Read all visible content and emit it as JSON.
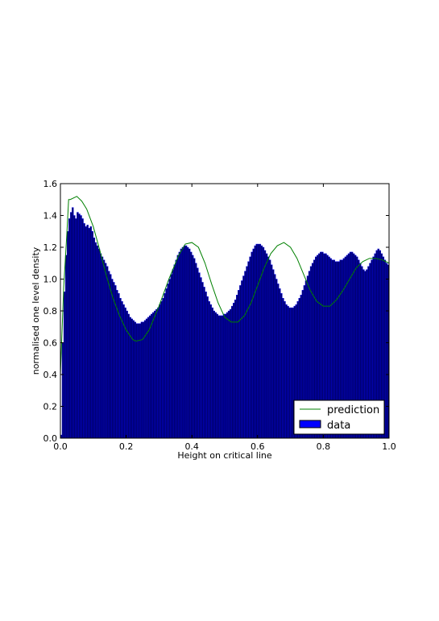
{
  "chart_data": {
    "type": "bar",
    "title": "",
    "xlabel": "Height on critical line",
    "ylabel": "normalised one level density",
    "xlim": [
      0.0,
      1.0
    ],
    "ylim": [
      0.0,
      1.6
    ],
    "x_ticks": [
      "0.0",
      "0.2",
      "0.4",
      "0.6",
      "0.8",
      "1.0"
    ],
    "y_ticks": [
      "0.0",
      "0.2",
      "0.4",
      "0.6",
      "0.8",
      "1.0",
      "1.2",
      "1.4",
      "1.6"
    ],
    "grid": false,
    "legend": {
      "placement": "lower-right",
      "entries": [
        "prediction",
        "data"
      ]
    },
    "colors": {
      "bar_fill": "#000066",
      "bar_edge": "#0000ff",
      "legend_patch": "#0000ff",
      "prediction_line": "#008000"
    },
    "series": [
      {
        "name": "data",
        "type": "bar",
        "bin_width": 0.005,
        "x_start": 0.0,
        "values": [
          0.02,
          0.6,
          0.92,
          1.15,
          1.3,
          1.38,
          1.42,
          1.45,
          1.4,
          1.38,
          1.42,
          1.41,
          1.4,
          1.38,
          1.35,
          1.33,
          1.34,
          1.32,
          1.33,
          1.3,
          1.26,
          1.23,
          1.21,
          1.19,
          1.16,
          1.14,
          1.12,
          1.1,
          1.08,
          1.05,
          1.03,
          1.0,
          0.98,
          0.96,
          0.93,
          0.91,
          0.88,
          0.86,
          0.84,
          0.82,
          0.8,
          0.78,
          0.76,
          0.75,
          0.74,
          0.73,
          0.72,
          0.72,
          0.72,
          0.73,
          0.73,
          0.74,
          0.75,
          0.76,
          0.77,
          0.78,
          0.79,
          0.8,
          0.81,
          0.82,
          0.84,
          0.86,
          0.88,
          0.91,
          0.94,
          0.97,
          1.0,
          1.03,
          1.06,
          1.09,
          1.12,
          1.15,
          1.17,
          1.19,
          1.2,
          1.21,
          1.21,
          1.2,
          1.19,
          1.17,
          1.15,
          1.13,
          1.1,
          1.07,
          1.04,
          1.01,
          0.98,
          0.95,
          0.92,
          0.89,
          0.86,
          0.84,
          0.82,
          0.8,
          0.79,
          0.78,
          0.77,
          0.77,
          0.77,
          0.78,
          0.78,
          0.79,
          0.8,
          0.81,
          0.83,
          0.85,
          0.87,
          0.9,
          0.93,
          0.96,
          0.99,
          1.02,
          1.05,
          1.08,
          1.11,
          1.14,
          1.17,
          1.19,
          1.21,
          1.22,
          1.22,
          1.22,
          1.21,
          1.2,
          1.18,
          1.16,
          1.14,
          1.12,
          1.09,
          1.06,
          1.03,
          1.0,
          0.97,
          0.94,
          0.91,
          0.88,
          0.86,
          0.84,
          0.83,
          0.82,
          0.82,
          0.82,
          0.83,
          0.84,
          0.86,
          0.88,
          0.9,
          0.93,
          0.96,
          0.99,
          1.02,
          1.05,
          1.08,
          1.1,
          1.12,
          1.14,
          1.15,
          1.16,
          1.17,
          1.17,
          1.16,
          1.16,
          1.15,
          1.14,
          1.13,
          1.12,
          1.12,
          1.11,
          1.11,
          1.11,
          1.12,
          1.12,
          1.13,
          1.14,
          1.15,
          1.16,
          1.17,
          1.17,
          1.16,
          1.15,
          1.14,
          1.12,
          1.1,
          1.08,
          1.06,
          1.05,
          1.06,
          1.08,
          1.1,
          1.12,
          1.14,
          1.16,
          1.18,
          1.19,
          1.18,
          1.16,
          1.14,
          1.12,
          1.1,
          1.09
        ]
      },
      {
        "name": "prediction",
        "type": "line",
        "x": [
          0.0,
          0.01,
          0.02,
          0.025,
          0.03,
          0.05,
          0.065,
          0.08,
          0.1,
          0.12,
          0.14,
          0.16,
          0.18,
          0.2,
          0.22,
          0.23,
          0.25,
          0.27,
          0.3,
          0.33,
          0.36,
          0.38,
          0.4,
          0.42,
          0.44,
          0.46,
          0.48,
          0.5,
          0.52,
          0.54,
          0.56,
          0.58,
          0.6,
          0.62,
          0.64,
          0.66,
          0.68,
          0.7,
          0.72,
          0.74,
          0.76,
          0.78,
          0.8,
          0.82,
          0.84,
          0.86,
          0.88,
          0.9,
          0.92,
          0.94,
          0.96,
          0.98,
          1.0
        ],
        "y": [
          0.4,
          0.95,
          1.3,
          1.5,
          1.5,
          1.52,
          1.49,
          1.44,
          1.33,
          1.18,
          1.02,
          0.88,
          0.77,
          0.68,
          0.62,
          0.61,
          0.62,
          0.68,
          0.83,
          1.0,
          1.15,
          1.22,
          1.23,
          1.2,
          1.1,
          0.97,
          0.85,
          0.76,
          0.73,
          0.73,
          0.77,
          0.85,
          0.96,
          1.07,
          1.16,
          1.21,
          1.23,
          1.2,
          1.13,
          1.03,
          0.93,
          0.86,
          0.83,
          0.83,
          0.87,
          0.93,
          1.0,
          1.07,
          1.11,
          1.13,
          1.13,
          1.12,
          1.1
        ]
      }
    ]
  }
}
